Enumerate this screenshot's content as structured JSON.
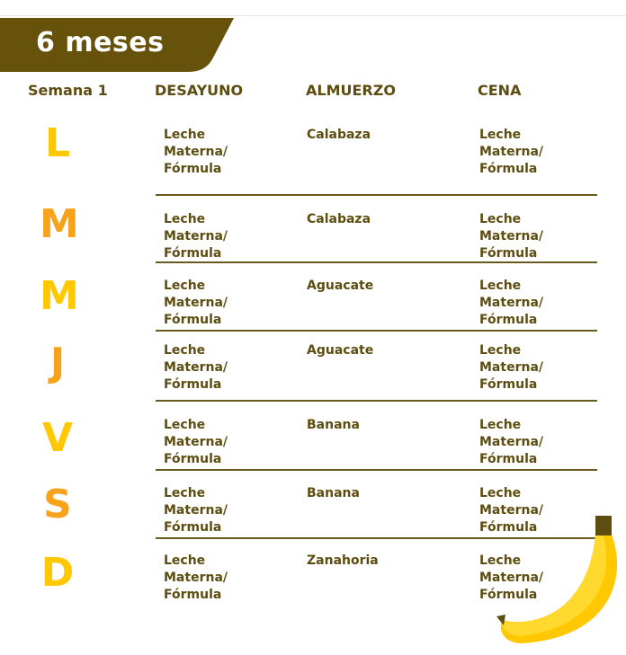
{
  "title": "6 meses",
  "headers": {
    "week": "Semana 1",
    "breakfast": "DESAYUNO",
    "lunch": "ALMUERZO",
    "dinner": "CENA"
  },
  "colors": {
    "brand": "#66520a",
    "text": "#5e4d10",
    "yellow": "#ffc800",
    "orange": "#f7a21b"
  },
  "days": [
    {
      "letter": "L",
      "color": "#ffc800",
      "breakfast": "Leche\nMaterna/\nFórmula",
      "lunch": "Calabaza",
      "dinner": "Leche\nMaterna/\nFórmula"
    },
    {
      "letter": "M",
      "color": "#f7a21b",
      "breakfast": "Leche\nMaterna/\nFórmula",
      "lunch": "Calabaza",
      "dinner": "Leche\nMaterna/\nFórmula"
    },
    {
      "letter": "M",
      "color": "#ffc800",
      "breakfast": "Leche\nMaterna/\nFórmula",
      "lunch": "Aguacate",
      "dinner": "Leche\nMaterna/\nFórmula"
    },
    {
      "letter": "J",
      "color": "#f7a21b",
      "breakfast": "Leche\nMaterna/\nFórmula",
      "lunch": "Aguacate",
      "dinner": "Leche\nMaterna/\nFórmula"
    },
    {
      "letter": "V",
      "color": "#ffc800",
      "breakfast": "Leche\nMaterna/\nFórmula",
      "lunch": "Banana",
      "dinner": "Leche\nMaterna/\nFórmula"
    },
    {
      "letter": "S",
      "color": "#f7a21b",
      "breakfast": "Leche\nMaterna/\nFórmula",
      "lunch": "Banana",
      "dinner": "Leche\nMaterna/\nFórmula"
    },
    {
      "letter": "D",
      "color": "#ffc800",
      "breakfast": "Leche\nMaterna/\nFórmula",
      "lunch": "Zanahoria",
      "dinner": "Leche\nMaterna/\nFórmula"
    }
  ]
}
